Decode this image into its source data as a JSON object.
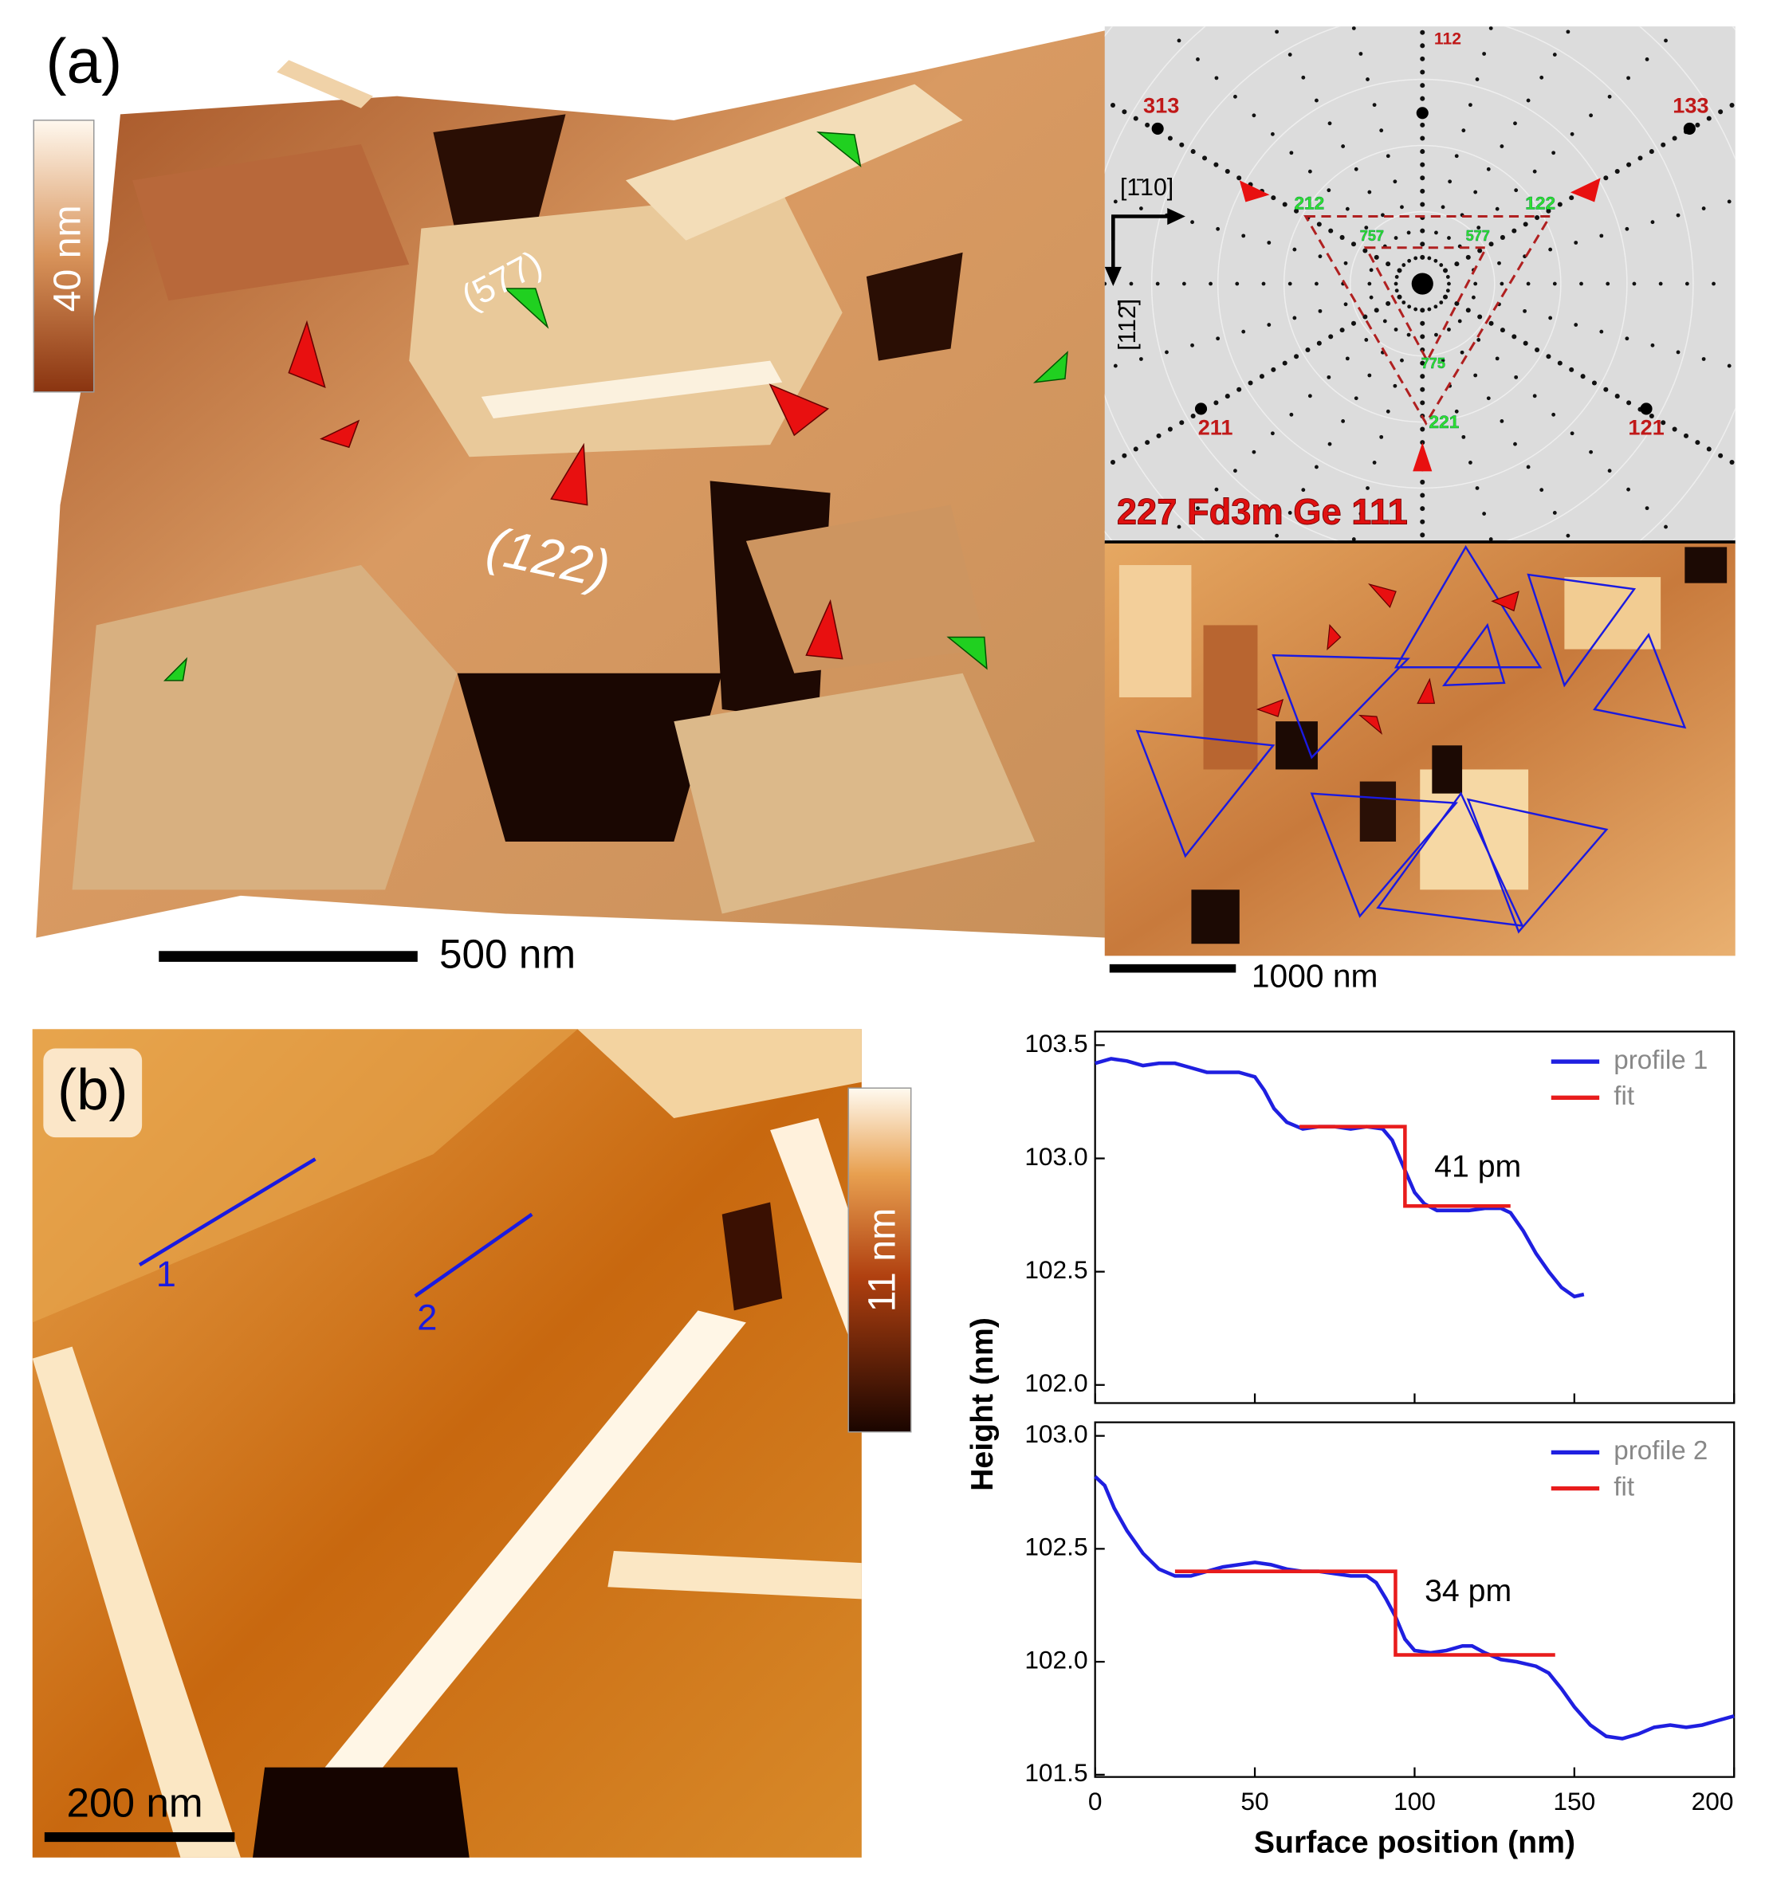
{
  "panel_a": {
    "label": "(a)",
    "colorbar_label": "40 nm",
    "facet_labels": [
      "(577)",
      "(122)"
    ],
    "scale_bar": "500 nm"
  },
  "projection": {
    "pole_labels": [
      "112",
      "313",
      "133",
      "211",
      "121"
    ],
    "zone_labels": [
      "212",
      "122",
      "757",
      "577",
      "775",
      "221"
    ],
    "title": "227  Fd3m Ge 111",
    "directions": [
      "[1̄10]",
      "[112̄]"
    ]
  },
  "inset": {
    "scale_bar": "1000 nm"
  },
  "panel_b": {
    "label": "(b)",
    "colorbar_label": "11 nm",
    "profile_labels": [
      "1",
      "2"
    ],
    "scale_bar": "200 nm"
  },
  "chart_data": [
    {
      "type": "line",
      "xlim": [
        0,
        200
      ],
      "xticks": [
        0,
        50,
        100,
        150,
        200
      ],
      "ylim": [
        101.92,
        103.56
      ],
      "yticks": [
        {
          "value": 102.0,
          "label": "102.0"
        },
        102.5,
        {
          "value": 103.0,
          "label": "103.0"
        },
        103.5
      ],
      "legend": "upper right",
      "annotations": [
        "41 pm"
      ],
      "series": [
        {
          "name": "profile 1",
          "color": "#1f1fe0",
          "x": [
            0,
            5,
            10,
            15,
            20,
            25,
            30,
            35,
            40,
            45,
            50,
            53,
            56,
            60,
            65,
            70,
            75,
            80,
            85,
            90,
            93,
            96,
            100,
            103,
            107,
            112,
            117,
            122,
            127,
            130,
            134,
            138,
            142,
            146,
            150,
            153
          ],
          "values": [
            103.42,
            103.44,
            103.43,
            103.41,
            103.42,
            103.42,
            103.4,
            103.38,
            103.38,
            103.38,
            103.36,
            103.3,
            103.22,
            103.16,
            103.13,
            103.14,
            103.14,
            103.13,
            103.14,
            103.13,
            103.08,
            102.98,
            102.85,
            102.8,
            102.77,
            102.77,
            102.77,
            102.78,
            102.78,
            102.76,
            102.68,
            102.58,
            102.5,
            102.43,
            102.39,
            102.4
          ]
        },
        {
          "name": "fit",
          "color": "#e81c1c",
          "x": [
            64,
            97,
            97,
            130
          ],
          "values": [
            103.14,
            103.14,
            102.79,
            102.79
          ]
        }
      ]
    },
    {
      "type": "line",
      "xlim": [
        0,
        200
      ],
      "xticks": [
        0,
        50,
        100,
        150,
        200
      ],
      "ylim": [
        101.49,
        103.06
      ],
      "yticks": [
        101.5,
        {
          "value": 102.0,
          "label": "102.0"
        },
        102.5,
        {
          "value": 103.0,
          "label": "103.0"
        }
      ],
      "xlabel": "Surface position (nm)",
      "ylabel": "Height (nm)",
      "legend": "upper right",
      "annotations": [
        "34 pm"
      ],
      "series": [
        {
          "name": "profile 2",
          "color": "#1f1fe0",
          "x": [
            0,
            3,
            6,
            10,
            15,
            20,
            25,
            30,
            35,
            40,
            45,
            50,
            55,
            60,
            65,
            70,
            75,
            80,
            85,
            88,
            91,
            94,
            97,
            100,
            105,
            110,
            115,
            118,
            122,
            127,
            132,
            138,
            142,
            146,
            150,
            155,
            160,
            165,
            170,
            175,
            180,
            185,
            190,
            195,
            200
          ],
          "values": [
            102.82,
            102.78,
            102.68,
            102.58,
            102.48,
            102.41,
            102.38,
            102.38,
            102.4,
            102.42,
            102.43,
            102.44,
            102.43,
            102.41,
            102.4,
            102.4,
            102.39,
            102.38,
            102.38,
            102.35,
            102.28,
            102.2,
            102.1,
            102.05,
            102.04,
            102.05,
            102.07,
            102.07,
            102.04,
            102.01,
            102.0,
            101.98,
            101.95,
            101.88,
            101.8,
            101.72,
            101.67,
            101.66,
            101.68,
            101.71,
            101.72,
            101.71,
            101.72,
            101.74,
            101.76
          ]
        },
        {
          "name": "fit",
          "color": "#e81c1c",
          "x": [
            25,
            94,
            94,
            144
          ],
          "values": [
            102.4,
            102.4,
            102.03,
            102.03
          ]
        }
      ]
    }
  ]
}
